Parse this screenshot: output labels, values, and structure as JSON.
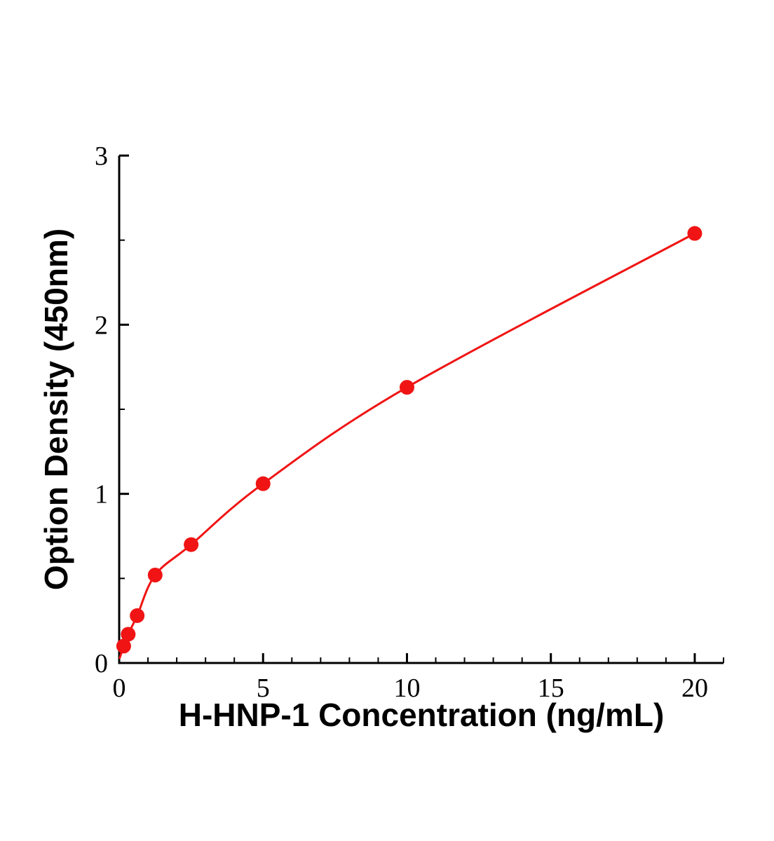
{
  "figure": {
    "background": "#ffffff"
  },
  "chart_data": {
    "type": "scatter",
    "title": "",
    "xlabel": "H-HNP-1 Concentration (ng/mL)",
    "ylabel": "Option Density (450nm)",
    "x": [
      0.156,
      0.313,
      0.625,
      1.25,
      2.5,
      5,
      10,
      20
    ],
    "y": [
      0.1,
      0.17,
      0.28,
      0.52,
      0.7,
      1.06,
      1.63,
      2.54
    ],
    "xlim": [
      0,
      21
    ],
    "ylim": [
      0,
      3
    ],
    "x_ticks": [
      0,
      5,
      10,
      15,
      20
    ],
    "y_ticks": [
      0,
      1,
      2,
      3
    ],
    "x_minor_step": 1,
    "y_minor_step": 0.5,
    "grid": false,
    "legend_position": "none",
    "curve": "smooth-through-points",
    "curve_start": [
      0.02,
      0.03
    ],
    "marker": "circle",
    "marker_radius": 10.5,
    "line_width": 3,
    "colors": {
      "series": "#f01414",
      "axis": "#000000",
      "tick_label": "#000000",
      "axis_title": "#000000"
    }
  }
}
